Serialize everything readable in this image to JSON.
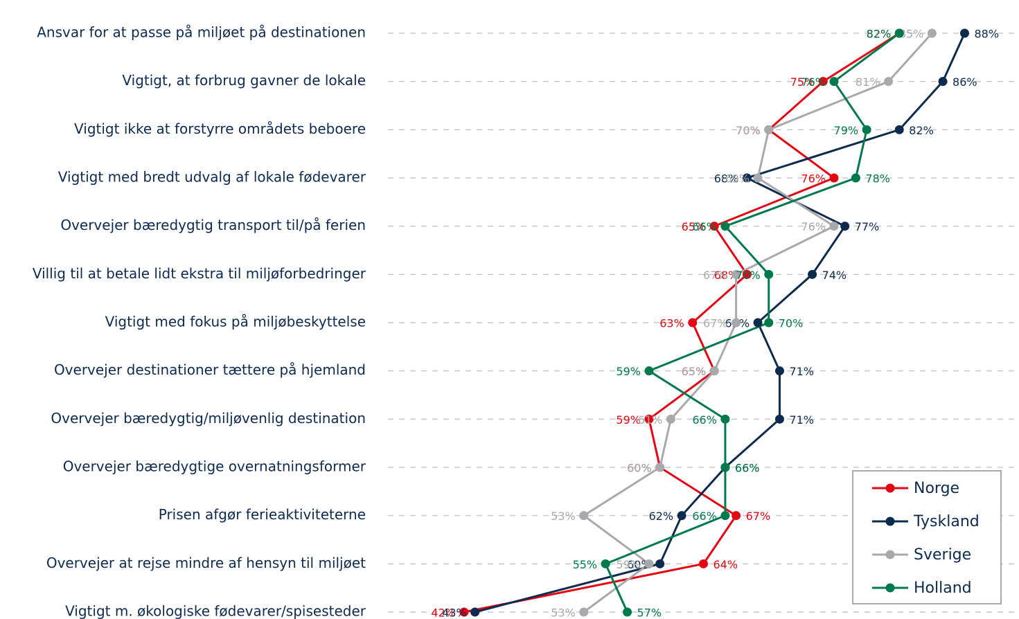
{
  "chart_data": {
    "type": "line",
    "categories": [
      "Ansvar for at passe på miljøet på destinationen",
      "Vigtigt, at forbrug gavner de lokale",
      "Vigtigt ikke at forstyrre områdets beboere",
      "Vigtigt med bredt udvalg af lokale fødevarer",
      "Overvejer bæredygtig transport til/på ferien",
      "Villig til at betale lidt ekstra til miljøforbedringer",
      "Vigtigt med fokus på miljøbeskyttelse",
      "Overvejer destinationer tættere på hjemland",
      "Overvejer bæredygtig/miljøvenlig destination",
      "Overvejer bæredygtige overnatningsformer",
      "Prisen afgør ferieaktiviteterne",
      "Overvejer at rejse mindre af hensyn til miljøet",
      "Vigtigt m. økologiske fødevarer/spisesteder"
    ],
    "series": [
      {
        "name": "Norge",
        "color": "#e30613",
        "values": [
          82,
          75,
          70,
          76,
          65,
          68,
          63,
          65,
          59,
          60,
          67,
          64,
          42
        ],
        "value_labels": [
          "82%",
          "75%",
          "70%",
          "76%",
          "65%",
          "68%",
          "63%",
          "65%",
          "59%",
          "60%",
          "67%",
          "64%",
          "42%"
        ]
      },
      {
        "name": "Tyskland",
        "color": "#0d2a4f",
        "values": [
          88,
          86,
          82,
          68,
          77,
          74,
          69,
          71,
          71,
          66,
          62,
          60,
          43
        ],
        "value_labels": [
          "88%",
          "86%",
          "82%",
          "68%",
          "77%",
          "74%",
          "69%",
          "71%",
          "71%",
          "66%",
          "62%",
          "60%",
          "43%"
        ]
      },
      {
        "name": "Sverige",
        "color": "#a7a9ac",
        "values": [
          85,
          81,
          70,
          69,
          76,
          67,
          67,
          65,
          61,
          60,
          53,
          59,
          53
        ],
        "value_labels": [
          "85%",
          "81%",
          "70%",
          "69%",
          "76%",
          "67%",
          "67%",
          "65%",
          "61%",
          "60%",
          "53%",
          "59%",
          "53%"
        ]
      },
      {
        "name": "Holland",
        "color": "#007a4d",
        "values": [
          82,
          76,
          79,
          78,
          66,
          70,
          70,
          59,
          66,
          66,
          66,
          55,
          57
        ],
        "value_labels": [
          "82%",
          "76%",
          "79%",
          "78%",
          "66%",
          "70%",
          "70%",
          "59%",
          "66%",
          "66%",
          "66%",
          "55%",
          "57%"
        ]
      }
    ],
    "xlim": [
      35,
      93
    ],
    "grid": true,
    "legend": "lower right"
  }
}
